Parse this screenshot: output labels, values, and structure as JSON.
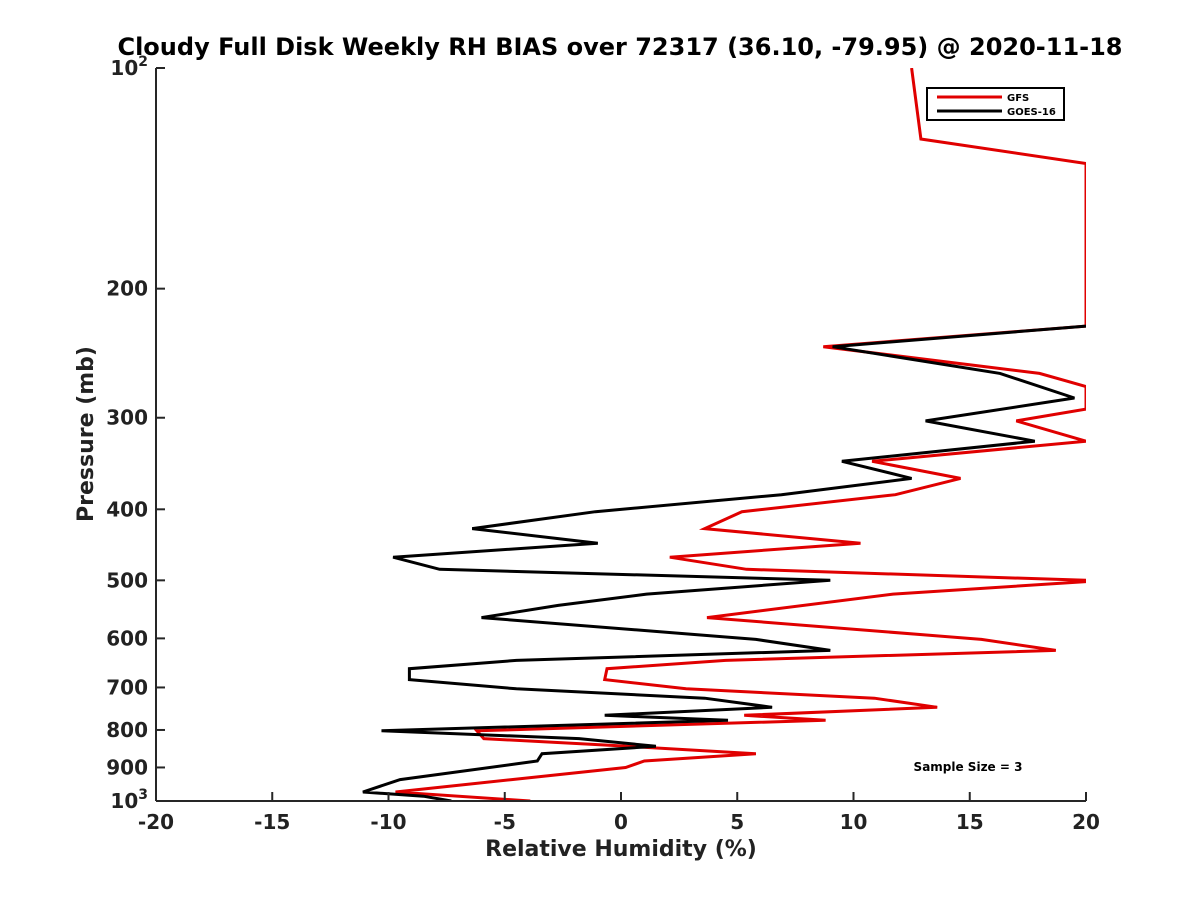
{
  "chart_data": {
    "type": "line",
    "title": "Cloudy Full Disk Weekly RH BIAS over 72317 (36.10, -79.95) @ 2020-11-18",
    "xlabel": "Relative Humidity (%)",
    "ylabel": "Pressure (mb)",
    "xlim": [
      -20,
      20
    ],
    "ylim": [
      100,
      1000
    ],
    "y_scale": "log",
    "y_reversed": true,
    "grid": false,
    "legend_position": "top-right",
    "x_ticks": [
      -20,
      -15,
      -10,
      -5,
      0,
      5,
      10,
      15,
      20
    ],
    "x_tick_labels": [
      "-20",
      "-15",
      "-10",
      "-5",
      "0",
      "5",
      "10",
      "15",
      "20"
    ],
    "y_ticks": [
      200,
      300,
      400,
      500,
      600,
      700,
      800,
      900
    ],
    "y_tick_labels": [
      "200",
      "300",
      "400",
      "500",
      "600",
      "700",
      "800",
      "900"
    ],
    "y_edge_labels": [
      {
        "base": "10",
        "exp": "2",
        "value": 100
      },
      {
        "base": "10",
        "exp": "3",
        "value": 1000
      }
    ],
    "annotation": "Sample Size = 3",
    "series": [
      {
        "name": "GFS",
        "color": "#e00000",
        "points": [
          [
            12.5,
            100
          ],
          [
            12.9,
            125
          ],
          [
            20.0,
            135
          ],
          [
            20.0,
            225
          ],
          [
            8.7,
            240
          ],
          [
            18.0,
            261
          ],
          [
            20.0,
            272
          ],
          [
            20.0,
            292
          ],
          [
            17.0,
            303
          ],
          [
            20.0,
            323
          ],
          [
            10.8,
            344
          ],
          [
            14.6,
            363
          ],
          [
            11.8,
            382
          ],
          [
            5.2,
            403
          ],
          [
            3.6,
            425
          ],
          [
            10.3,
            445
          ],
          [
            2.1,
            465
          ],
          [
            5.4,
            483
          ],
          [
            20.0,
            500
          ],
          [
            20.0,
            502
          ],
          [
            11.7,
            522
          ],
          [
            3.7,
            562
          ],
          [
            15.5,
            602
          ],
          [
            18.7,
            623
          ],
          [
            4.5,
            643
          ],
          [
            -0.6,
            660
          ],
          [
            -0.7,
            683
          ],
          [
            2.8,
            703
          ],
          [
            10.9,
            724
          ],
          [
            13.6,
            745
          ],
          [
            5.3,
            764
          ],
          [
            8.8,
            776
          ],
          [
            -6.2,
            802
          ],
          [
            -5.9,
            822
          ],
          [
            0.3,
            842
          ],
          [
            5.8,
            862
          ],
          [
            1.0,
            882
          ],
          [
            0.2,
            900
          ],
          [
            -4.7,
            935
          ],
          [
            -9.7,
            972
          ],
          [
            -3.9,
            1000
          ]
        ]
      },
      {
        "name": "GOES-16",
        "color": "#000000",
        "points": [
          [
            20.0,
            225
          ],
          [
            9.1,
            240
          ],
          [
            16.3,
            261
          ],
          [
            19.5,
            282
          ],
          [
            13.1,
            303
          ],
          [
            17.8,
            323
          ],
          [
            9.5,
            344
          ],
          [
            12.5,
            363
          ],
          [
            6.9,
            382
          ],
          [
            -1.1,
            403
          ],
          [
            -6.4,
            425
          ],
          [
            -1.0,
            445
          ],
          [
            -9.8,
            465
          ],
          [
            -7.8,
            483
          ],
          [
            9.0,
            500
          ],
          [
            1.1,
            522
          ],
          [
            -2.7,
            541
          ],
          [
            -6.0,
            562
          ],
          [
            5.8,
            602
          ],
          [
            9.0,
            623
          ],
          [
            -4.5,
            643
          ],
          [
            -9.1,
            660
          ],
          [
            -9.1,
            683
          ],
          [
            -4.5,
            703
          ],
          [
            3.6,
            724
          ],
          [
            6.5,
            745
          ],
          [
            -0.7,
            764
          ],
          [
            4.6,
            776
          ],
          [
            -10.3,
            802
          ],
          [
            -1.8,
            822
          ],
          [
            1.5,
            842
          ],
          [
            -3.4,
            862
          ],
          [
            -3.6,
            882
          ],
          [
            -9.5,
            935
          ],
          [
            -11.1,
            972
          ],
          [
            -8.5,
            985
          ],
          [
            -7.3,
            1000
          ]
        ]
      }
    ]
  }
}
